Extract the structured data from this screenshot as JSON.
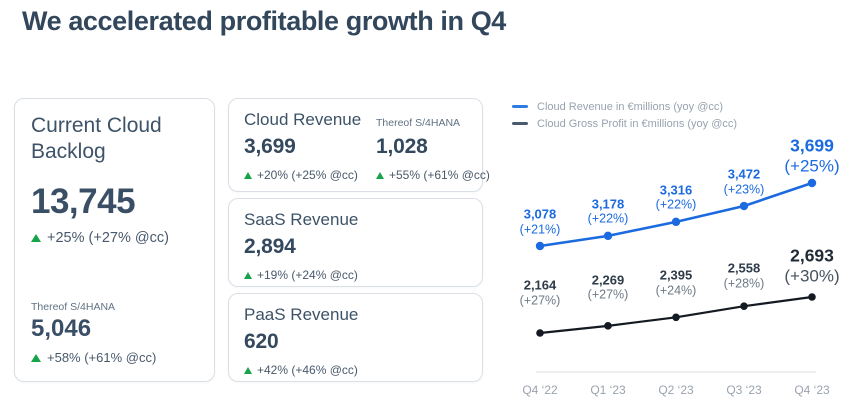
{
  "title": "We accelerated profitable growth in Q4",
  "backlog_card": {
    "title": "Current Cloud Backlog",
    "value": "13,745",
    "change": "+25% (+27% @cc)",
    "sub_label": "Thereof S/4HANA",
    "sub_value": "5,046",
    "sub_change": "+58% (+61% @cc)"
  },
  "revenue_cards": [
    {
      "title": "Cloud Revenue",
      "value": "3,699",
      "change": "+20% (+25% @cc)",
      "sub_label": "Thereof S/4HANA",
      "sub_value": "1,028",
      "sub_change": "+55% (+61% @cc)"
    },
    {
      "title": "SaaS Revenue",
      "value": "2,894",
      "change": "+19% (+24% @cc)"
    },
    {
      "title": "PaaS Revenue",
      "value": "620",
      "change": "+42% (+46% @cc)"
    }
  ],
  "colors": {
    "title_navy": "#32465c",
    "accent_blue": "#1b6ae0",
    "positive_green": "#16a34a"
  },
  "chart_data": {
    "type": "line",
    "title": "",
    "categories": [
      "Q4 ‘22",
      "Q1 ‘23",
      "Q2 ‘23",
      "Q3 ‘23",
      "Q4 ‘23"
    ],
    "grid": false,
    "legend_position": "top-left",
    "series": [
      {
        "name": "Cloud Revenue in €millions (yoy @cc)",
        "color": "#1b6ae0",
        "legend_color": "#2f7de0",
        "values": [
          3078,
          3178,
          3316,
          3472,
          3699
        ],
        "labels": [
          "3,078",
          "3,178",
          "3,316",
          "3,472",
          "3,699"
        ],
        "yoy": [
          "(+21%)",
          "(+22%)",
          "(+22%)",
          "(+23%)",
          "(+25%)"
        ]
      },
      {
        "name": "Cloud Gross Profit in €millions (yoy @cc)",
        "color": "#141a21",
        "legend_color": "#4a5a6d",
        "values": [
          2164,
          2269,
          2395,
          2558,
          2693
        ],
        "labels": [
          "2,164",
          "2,269",
          "2,395",
          "2,558",
          "2,693"
        ],
        "yoy": [
          "(+27%)",
          "(+27%)",
          "(+24%)",
          "(+28%)",
          "(+30%)"
        ]
      }
    ]
  }
}
